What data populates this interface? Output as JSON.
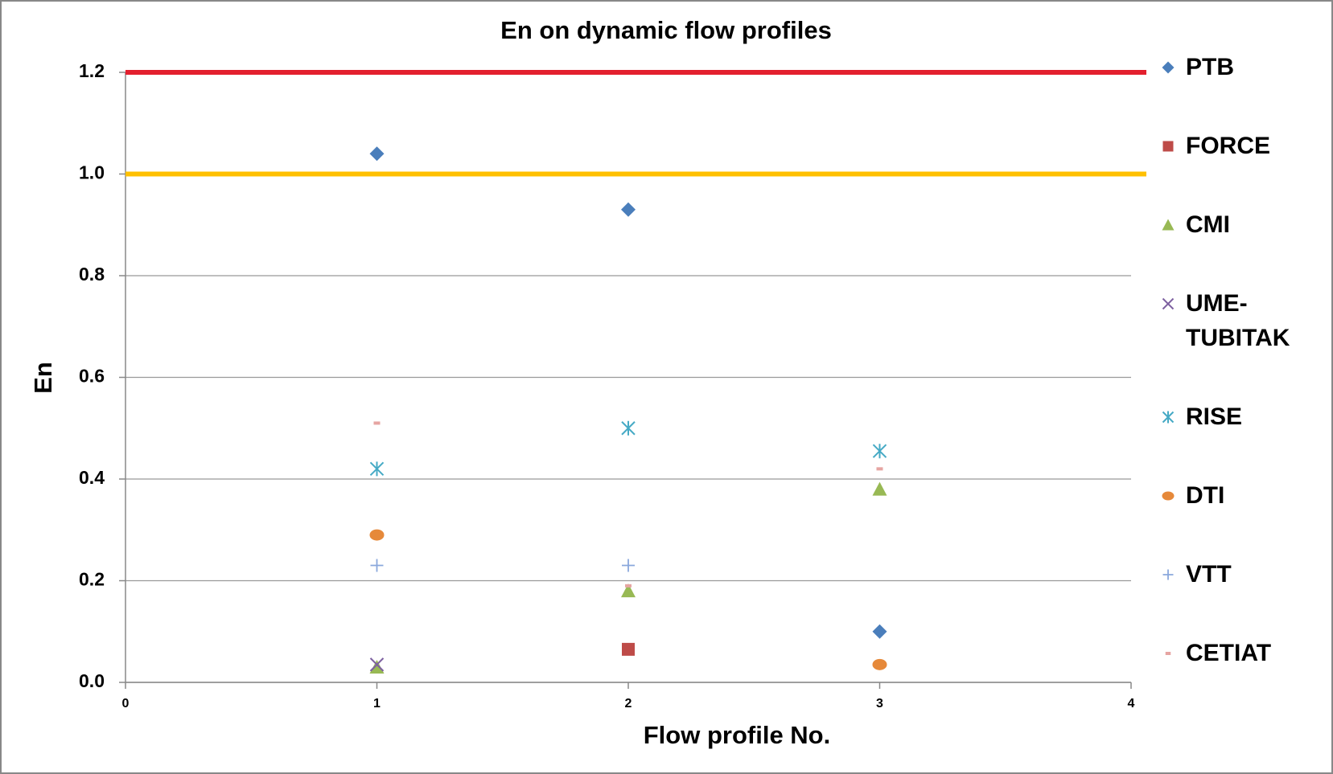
{
  "chart_data": {
    "type": "scatter",
    "title": "En on dynamic flow profiles",
    "x_label": "Flow profile No.",
    "y_label": "En",
    "xlim": [
      0,
      4
    ],
    "xticks": [
      0,
      1,
      2,
      3,
      4
    ],
    "ylim": [
      0,
      1.2
    ],
    "yticks": [
      {
        "value": 0,
        "label": "0.0"
      },
      0.2,
      0.4,
      0.6,
      0.8,
      {
        "value": 1,
        "label": "1.0"
      },
      1.2
    ],
    "grid": true,
    "legend": "right",
    "reference_lines": [
      {
        "value": 1.2,
        "color": "#e3202e"
      },
      {
        "value": 1,
        "color": "#ffc000"
      }
    ],
    "series": [
      {
        "name": "PTB",
        "color": "#4a7ebb",
        "marker": "diamond",
        "x": [
          1,
          2,
          3
        ],
        "values": [
          1.04,
          0.93,
          0.1
        ]
      },
      {
        "name": "FORCE",
        "color": "#be4b48",
        "marker": "square",
        "x": [
          2
        ],
        "values": [
          0.065
        ]
      },
      {
        "name": "CMI",
        "color": "#98b954",
        "marker": "triangle",
        "x": [
          1,
          2,
          3
        ],
        "values": [
          0.03,
          0.18,
          0.38
        ]
      },
      {
        "name": "UME-TUBITAK",
        "color": "#7d60a0",
        "marker": "x",
        "x": [
          1
        ],
        "values": [
          0.035
        ]
      },
      {
        "name": "RISE",
        "color": "#46aac5",
        "marker": "star",
        "x": [
          1,
          2,
          3
        ],
        "values": [
          0.42,
          0.5,
          0.455
        ]
      },
      {
        "name": "DTI",
        "color": "#e6893a",
        "marker": "circle",
        "x": [
          1,
          3
        ],
        "values": [
          0.29,
          0.035
        ]
      },
      {
        "name": "VTT",
        "color": "#8aa8dc",
        "marker": "plus",
        "x": [
          1,
          2
        ],
        "values": [
          0.23,
          0.23
        ]
      },
      {
        "name": "CETIAT",
        "color": "#e6a5a2",
        "marker": "dash",
        "x": [
          1,
          2,
          3
        ],
        "values": [
          0.51,
          0.19,
          0.42
        ]
      }
    ]
  }
}
